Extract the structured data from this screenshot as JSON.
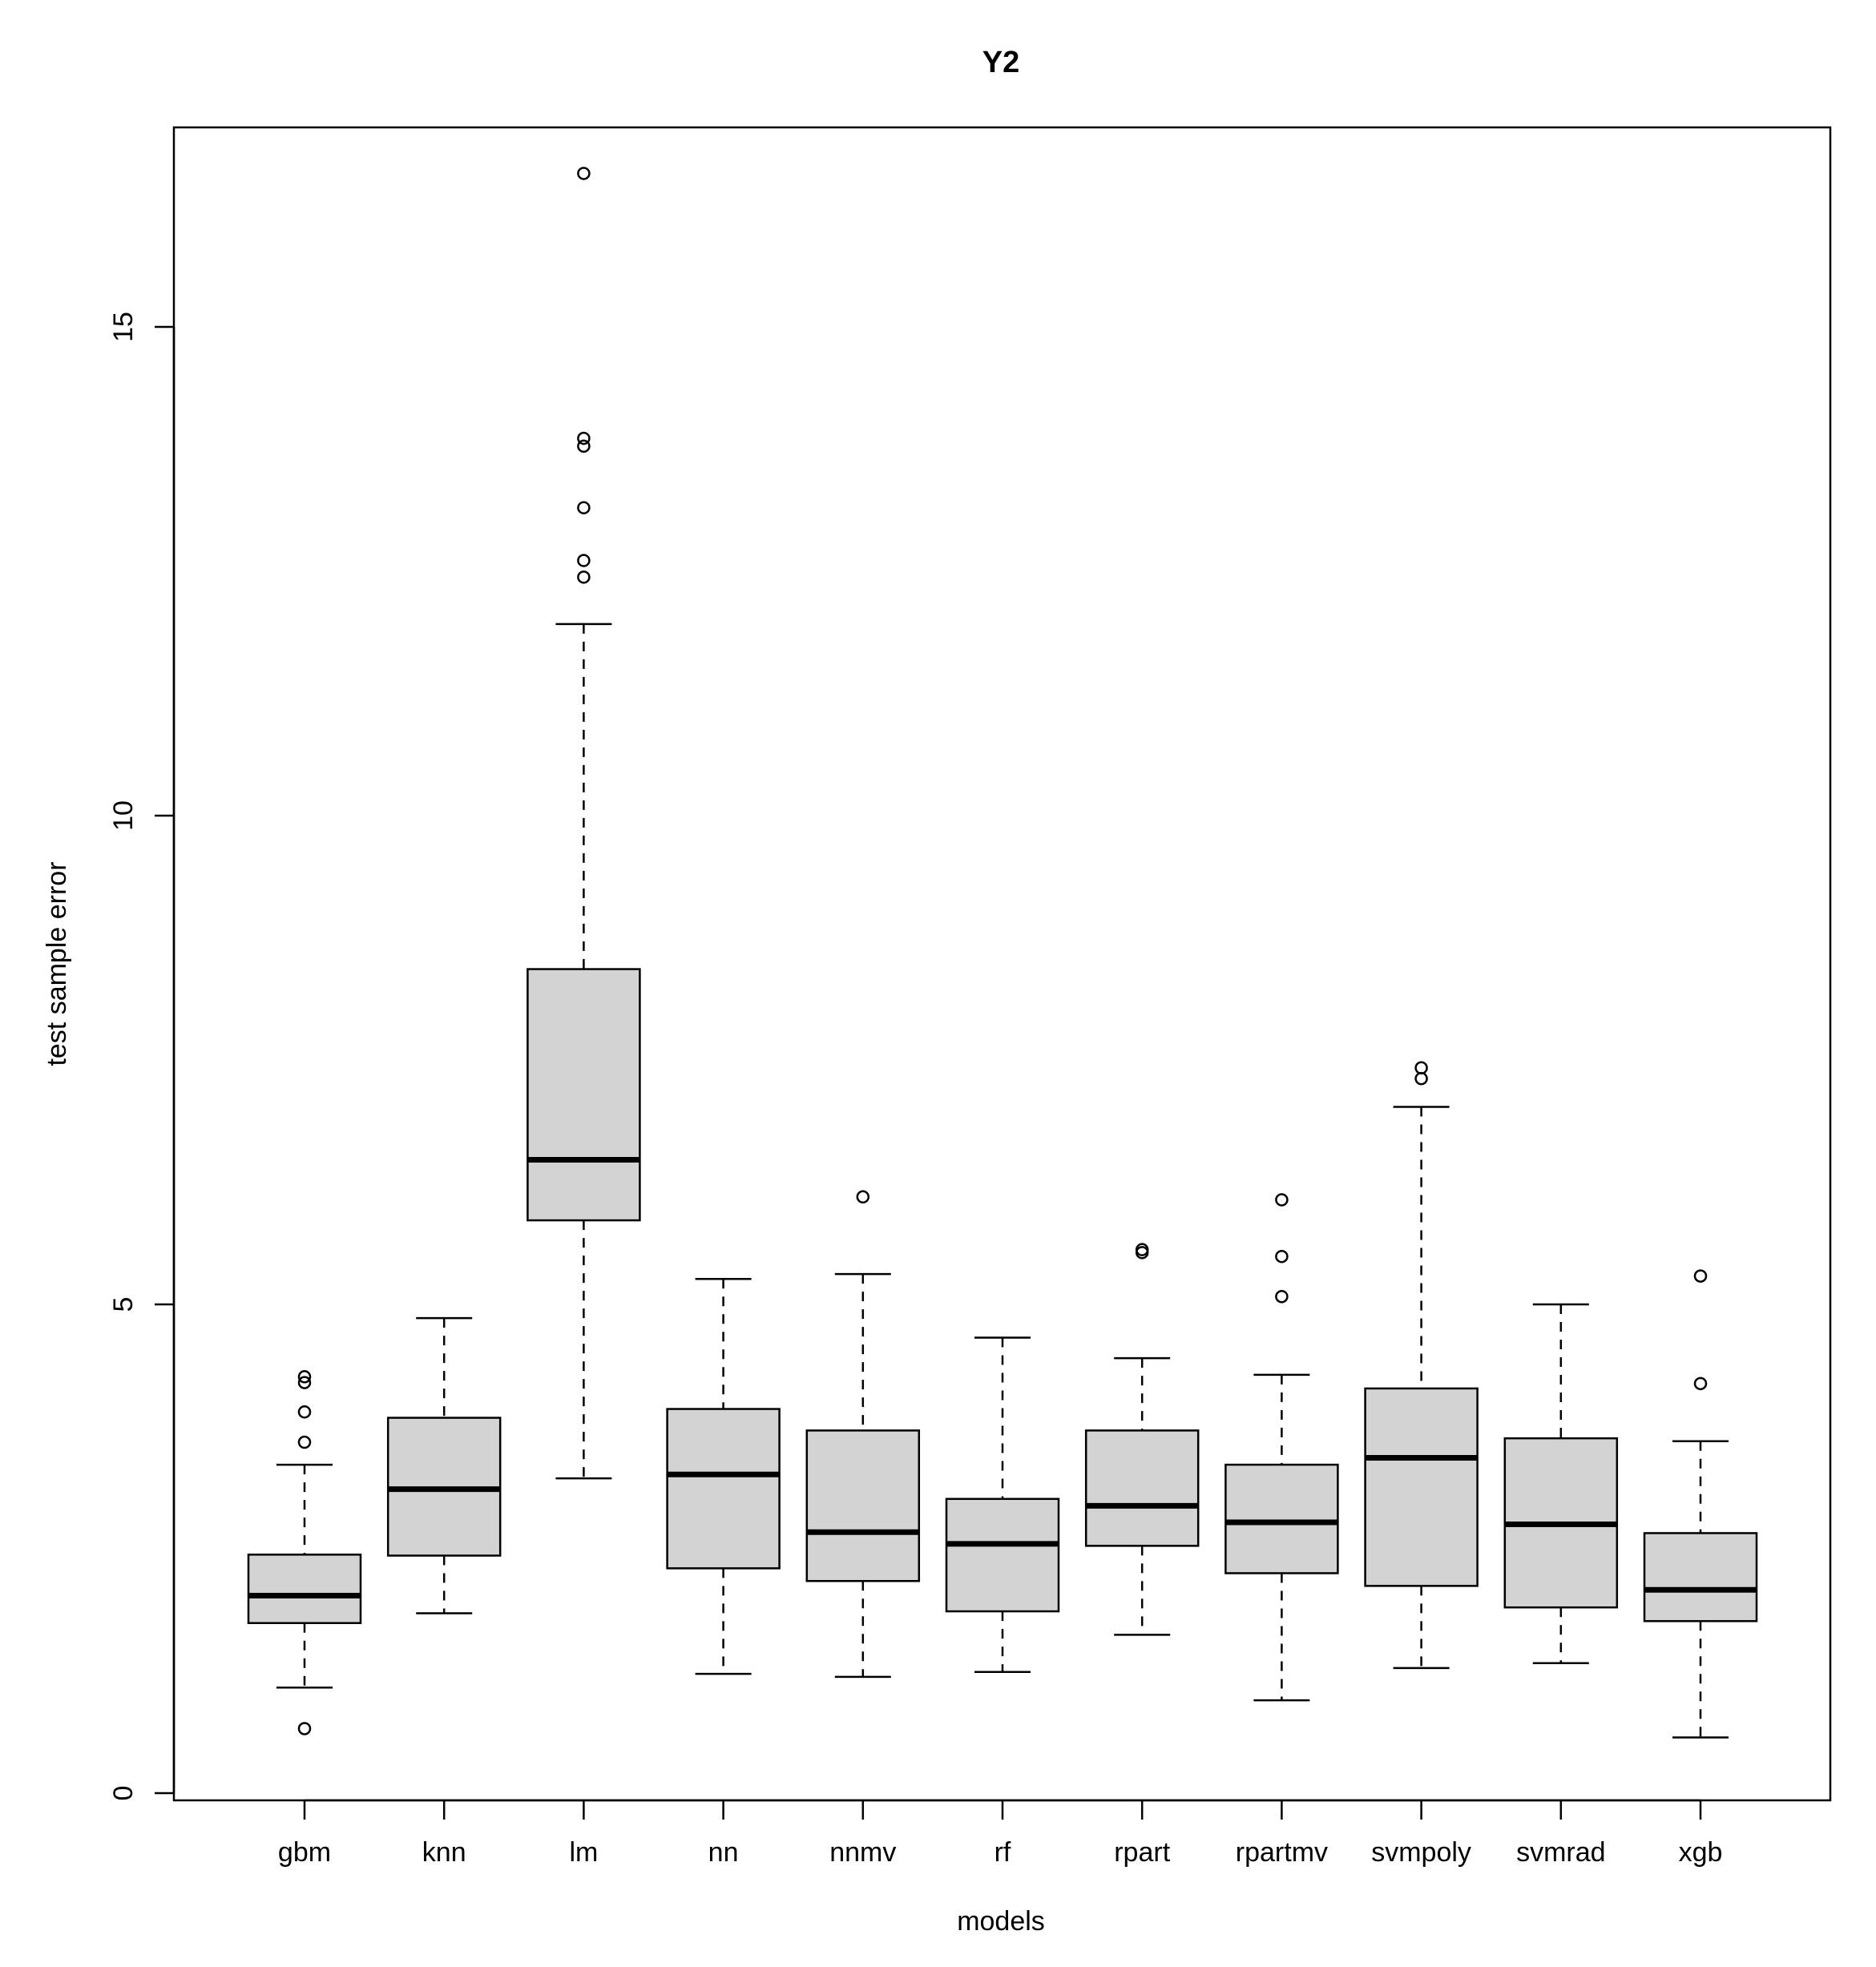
{
  "chart_data": {
    "type": "boxplot",
    "title": "Y2",
    "xlabel": "models",
    "ylabel": "test sample error",
    "ylim": [
      0,
      17
    ],
    "yticks": [
      0,
      5,
      10,
      15
    ],
    "grid": false,
    "box_fill": "#d3d3d3",
    "categories": [
      "gbm",
      "knn",
      "lm",
      "nn",
      "nnmv",
      "rf",
      "rpart",
      "rpartmv",
      "svmpoly",
      "svmrad",
      "xgb"
    ],
    "boxes": [
      {
        "name": "gbm",
        "whisker_low": 1.08,
        "q1": 1.74,
        "median": 2.02,
        "q3": 2.44,
        "whisker_high": 3.36,
        "outliers": [
          0.66,
          3.59,
          3.9,
          4.2,
          4.26
        ]
      },
      {
        "name": "knn",
        "whisker_low": 1.84,
        "q1": 2.43,
        "median": 3.11,
        "q3": 3.84,
        "whisker_high": 4.86,
        "outliers": []
      },
      {
        "name": "lm",
        "whisker_low": 3.22,
        "q1": 5.86,
        "median": 6.48,
        "q3": 8.43,
        "whisker_high": 11.96,
        "outliers": [
          12.44,
          12.61,
          13.15,
          13.78,
          13.86,
          16.57
        ]
      },
      {
        "name": "nn",
        "whisker_low": 1.22,
        "q1": 2.3,
        "median": 3.26,
        "q3": 3.93,
        "whisker_high": 5.26,
        "outliers": []
      },
      {
        "name": "nnmv",
        "whisker_low": 1.19,
        "q1": 2.17,
        "median": 2.67,
        "q3": 3.71,
        "whisker_high": 5.31,
        "outliers": [
          6.1
        ]
      },
      {
        "name": "rf",
        "whisker_low": 1.24,
        "q1": 1.86,
        "median": 2.55,
        "q3": 3.01,
        "whisker_high": 4.66,
        "outliers": []
      },
      {
        "name": "rpart",
        "whisker_low": 1.62,
        "q1": 2.53,
        "median": 2.94,
        "q3": 3.71,
        "whisker_high": 4.45,
        "outliers": [
          5.53,
          5.56
        ]
      },
      {
        "name": "rpartmv",
        "whisker_low": 0.95,
        "q1": 2.25,
        "median": 2.77,
        "q3": 3.36,
        "whisker_high": 4.28,
        "outliers": [
          5.08,
          5.49,
          6.07
        ]
      },
      {
        "name": "svmpoly",
        "whisker_low": 1.28,
        "q1": 2.12,
        "median": 3.43,
        "q3": 4.14,
        "whisker_high": 7.02,
        "outliers": [
          7.31,
          7.42
        ]
      },
      {
        "name": "svmrad",
        "whisker_low": 1.33,
        "q1": 1.9,
        "median": 2.75,
        "q3": 3.63,
        "whisker_high": 5.0,
        "outliers": []
      },
      {
        "name": "xgb",
        "whisker_low": 0.57,
        "q1": 1.76,
        "median": 2.08,
        "q3": 2.66,
        "whisker_high": 3.6,
        "outliers": [
          4.19,
          5.29
        ]
      }
    ]
  }
}
